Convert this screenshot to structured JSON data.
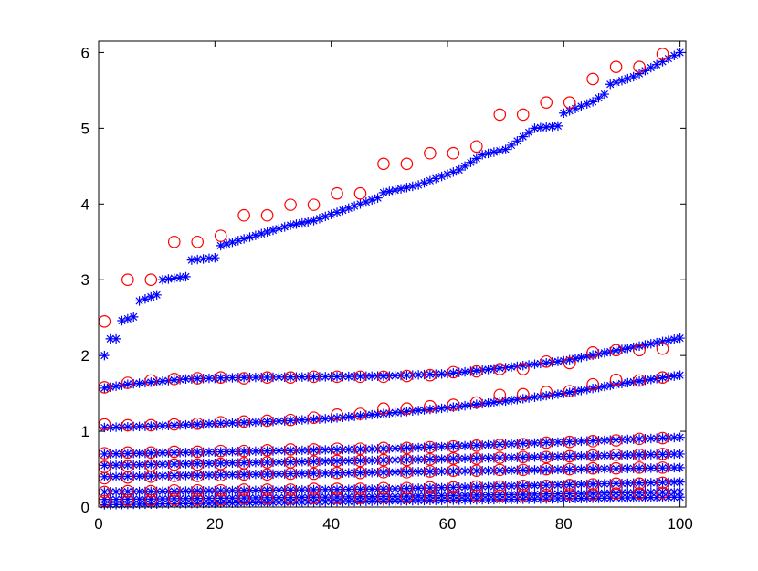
{
  "chart_data": {
    "type": "scatter",
    "title": "",
    "xlabel": "",
    "ylabel": "",
    "xlim": [
      0,
      101
    ],
    "ylim": [
      0,
      6.15
    ],
    "xticks": [
      0,
      20,
      40,
      60,
      80,
      100
    ],
    "yticks": [
      0,
      1,
      2,
      3,
      4,
      5,
      6
    ],
    "grid": false,
    "legend": null,
    "colors": {
      "star": "#0000ff",
      "circle": "#ff0000",
      "axes": "#000000"
    },
    "star_series": [
      {
        "knots": [
          [
            1,
            2.0
          ],
          [
            2,
            2.22
          ],
          [
            3,
            2.22
          ],
          [
            4,
            2.46
          ],
          [
            6,
            2.51
          ],
          [
            7,
            2.72
          ],
          [
            10,
            2.8
          ],
          [
            11,
            3.0
          ],
          [
            15,
            3.04
          ],
          [
            16,
            3.26
          ],
          [
            20,
            3.29
          ],
          [
            21,
            3.45
          ],
          [
            33,
            3.72
          ],
          [
            37,
            3.78
          ],
          [
            45,
            4.0
          ],
          [
            48,
            4.08
          ],
          [
            49,
            4.15
          ],
          [
            55,
            4.25
          ],
          [
            62,
            4.45
          ],
          [
            66,
            4.65
          ],
          [
            70,
            4.72
          ],
          [
            75,
            5.0
          ],
          [
            79,
            5.03
          ],
          [
            80,
            5.2
          ],
          [
            85,
            5.35
          ],
          [
            87,
            5.45
          ],
          [
            88,
            5.58
          ],
          [
            92,
            5.68
          ],
          [
            95,
            5.8
          ],
          [
            100,
            6.0
          ]
        ]
      },
      {
        "knots": [
          [
            1,
            1.57
          ],
          [
            5,
            1.62
          ],
          [
            15,
            1.69
          ],
          [
            25,
            1.71
          ],
          [
            40,
            1.72
          ],
          [
            50,
            1.73
          ],
          [
            60,
            1.76
          ],
          [
            70,
            1.84
          ],
          [
            80,
            1.93
          ],
          [
            90,
            2.08
          ],
          [
            100,
            2.23
          ]
        ]
      },
      {
        "knots": [
          [
            1,
            1.05
          ],
          [
            10,
            1.07
          ],
          [
            20,
            1.1
          ],
          [
            30,
            1.13
          ],
          [
            40,
            1.17
          ],
          [
            50,
            1.24
          ],
          [
            60,
            1.31
          ],
          [
            70,
            1.4
          ],
          [
            80,
            1.5
          ],
          [
            90,
            1.63
          ],
          [
            100,
            1.74
          ]
        ]
      },
      {
        "knots": [
          [
            1,
            0.7
          ],
          [
            50,
            0.77
          ],
          [
            100,
            0.92
          ]
        ]
      },
      {
        "knots": [
          [
            1,
            0.55
          ],
          [
            50,
            0.62
          ],
          [
            100,
            0.7
          ]
        ]
      },
      {
        "knots": [
          [
            1,
            0.4
          ],
          [
            50,
            0.46
          ],
          [
            100,
            0.52
          ]
        ]
      },
      {
        "knots": [
          [
            1,
            0.2
          ],
          [
            50,
            0.24
          ],
          [
            100,
            0.33
          ]
        ]
      },
      {
        "knots": [
          [
            1,
            0.1
          ],
          [
            50,
            0.14
          ],
          [
            100,
            0.2
          ]
        ]
      },
      {
        "knots": [
          [
            1,
            0.03
          ],
          [
            30,
            0.06
          ],
          [
            100,
            0.13
          ]
        ]
      }
    ],
    "circle_series": [
      {
        "points": [
          [
            1,
            2.45
          ],
          [
            5,
            3.0
          ],
          [
            9,
            3.0
          ],
          [
            13,
            3.5
          ],
          [
            17,
            3.5
          ],
          [
            21,
            3.58
          ],
          [
            25,
            3.85
          ],
          [
            29,
            3.85
          ],
          [
            33,
            3.99
          ],
          [
            37,
            3.99
          ],
          [
            41,
            4.14
          ],
          [
            45,
            4.14
          ],
          [
            49,
            4.53
          ],
          [
            53,
            4.53
          ],
          [
            57,
            4.67
          ],
          [
            61,
            4.67
          ],
          [
            65,
            4.76
          ],
          [
            69,
            5.18
          ],
          [
            73,
            5.18
          ],
          [
            77,
            5.34
          ],
          [
            81,
            5.34
          ],
          [
            85,
            5.65
          ],
          [
            89,
            5.81
          ],
          [
            93,
            5.81
          ],
          [
            97,
            5.98
          ]
        ]
      },
      {
        "points": [
          [
            1,
            1.58
          ],
          [
            5,
            1.64
          ],
          [
            9,
            1.67
          ],
          [
            13,
            1.69
          ],
          [
            17,
            1.7
          ],
          [
            21,
            1.71
          ],
          [
            25,
            1.7
          ],
          [
            29,
            1.71
          ],
          [
            33,
            1.71
          ],
          [
            37,
            1.72
          ],
          [
            41,
            1.72
          ],
          [
            45,
            1.72
          ],
          [
            49,
            1.72
          ],
          [
            53,
            1.73
          ],
          [
            57,
            1.74
          ],
          [
            61,
            1.78
          ],
          [
            65,
            1.79
          ],
          [
            69,
            1.82
          ],
          [
            73,
            1.82
          ],
          [
            77,
            1.92
          ],
          [
            81,
            1.9
          ],
          [
            85,
            2.04
          ],
          [
            89,
            2.07
          ],
          [
            93,
            2.07
          ],
          [
            97,
            2.09
          ]
        ]
      },
      {
        "points": [
          [
            1,
            1.09
          ],
          [
            5,
            1.08
          ],
          [
            9,
            1.08
          ],
          [
            13,
            1.09
          ],
          [
            17,
            1.1
          ],
          [
            21,
            1.12
          ],
          [
            25,
            1.13
          ],
          [
            29,
            1.14
          ],
          [
            33,
            1.15
          ],
          [
            37,
            1.18
          ],
          [
            41,
            1.22
          ],
          [
            45,
            1.23
          ],
          [
            49,
            1.3
          ],
          [
            53,
            1.3
          ],
          [
            57,
            1.33
          ],
          [
            61,
            1.35
          ],
          [
            65,
            1.38
          ],
          [
            69,
            1.48
          ],
          [
            73,
            1.49
          ],
          [
            77,
            1.52
          ],
          [
            81,
            1.53
          ],
          [
            85,
            1.62
          ],
          [
            89,
            1.68
          ],
          [
            93,
            1.67
          ],
          [
            97,
            1.71
          ]
        ]
      },
      {
        "points": [
          [
            1,
            0.71
          ],
          [
            5,
            0.72
          ],
          [
            9,
            0.72
          ],
          [
            13,
            0.73
          ],
          [
            17,
            0.73
          ],
          [
            21,
            0.74
          ],
          [
            25,
            0.74
          ],
          [
            29,
            0.75
          ],
          [
            33,
            0.76
          ],
          [
            37,
            0.76
          ],
          [
            41,
            0.77
          ],
          [
            45,
            0.77
          ],
          [
            49,
            0.78
          ],
          [
            53,
            0.78
          ],
          [
            57,
            0.79
          ],
          [
            61,
            0.8
          ],
          [
            65,
            0.81
          ],
          [
            69,
            0.82
          ],
          [
            73,
            0.83
          ],
          [
            77,
            0.85
          ],
          [
            81,
            0.86
          ],
          [
            85,
            0.87
          ],
          [
            89,
            0.88
          ],
          [
            93,
            0.9
          ],
          [
            97,
            0.91
          ]
        ]
      },
      {
        "points": [
          [
            1,
            0.53
          ],
          [
            5,
            0.54
          ],
          [
            9,
            0.55
          ],
          [
            13,
            0.56
          ],
          [
            17,
            0.56
          ],
          [
            21,
            0.57
          ],
          [
            25,
            0.58
          ],
          [
            29,
            0.59
          ],
          [
            33,
            0.59
          ],
          [
            37,
            0.6
          ],
          [
            41,
            0.61
          ],
          [
            45,
            0.61
          ],
          [
            49,
            0.62
          ],
          [
            53,
            0.62
          ],
          [
            57,
            0.63
          ],
          [
            61,
            0.64
          ],
          [
            65,
            0.64
          ],
          [
            69,
            0.65
          ],
          [
            73,
            0.66
          ],
          [
            77,
            0.66
          ],
          [
            81,
            0.67
          ],
          [
            85,
            0.68
          ],
          [
            89,
            0.69
          ],
          [
            93,
            0.69
          ],
          [
            97,
            0.7
          ]
        ]
      },
      {
        "points": [
          [
            1,
            0.38
          ],
          [
            5,
            0.39
          ],
          [
            9,
            0.4
          ],
          [
            13,
            0.41
          ],
          [
            17,
            0.41
          ],
          [
            21,
            0.42
          ],
          [
            25,
            0.43
          ],
          [
            29,
            0.43
          ],
          [
            33,
            0.44
          ],
          [
            37,
            0.44
          ],
          [
            41,
            0.45
          ],
          [
            45,
            0.45
          ],
          [
            49,
            0.46
          ],
          [
            53,
            0.46
          ],
          [
            57,
            0.47
          ],
          [
            61,
            0.48
          ],
          [
            65,
            0.48
          ],
          [
            69,
            0.49
          ],
          [
            73,
            0.49
          ],
          [
            77,
            0.5
          ],
          [
            81,
            0.5
          ],
          [
            85,
            0.51
          ],
          [
            89,
            0.51
          ],
          [
            93,
            0.52
          ],
          [
            97,
            0.52
          ]
        ]
      },
      {
        "points": [
          [
            1,
            0.2
          ],
          [
            5,
            0.21
          ],
          [
            9,
            0.21
          ],
          [
            13,
            0.22
          ],
          [
            17,
            0.22
          ],
          [
            21,
            0.22
          ],
          [
            25,
            0.23
          ],
          [
            29,
            0.23
          ],
          [
            33,
            0.23
          ],
          [
            37,
            0.24
          ],
          [
            41,
            0.24
          ],
          [
            45,
            0.24
          ],
          [
            49,
            0.25
          ],
          [
            53,
            0.25
          ],
          [
            57,
            0.26
          ],
          [
            61,
            0.26
          ],
          [
            65,
            0.27
          ],
          [
            69,
            0.27
          ],
          [
            73,
            0.28
          ],
          [
            77,
            0.28
          ],
          [
            81,
            0.29
          ],
          [
            85,
            0.3
          ],
          [
            89,
            0.31
          ],
          [
            93,
            0.31
          ],
          [
            97,
            0.32
          ]
        ]
      },
      {
        "points": [
          [
            1,
            0.08
          ],
          [
            5,
            0.09
          ],
          [
            9,
            0.09
          ],
          [
            13,
            0.1
          ],
          [
            17,
            0.1
          ],
          [
            21,
            0.1
          ],
          [
            25,
            0.11
          ],
          [
            29,
            0.11
          ],
          [
            33,
            0.11
          ],
          [
            37,
            0.12
          ],
          [
            41,
            0.12
          ],
          [
            45,
            0.12
          ],
          [
            49,
            0.13
          ],
          [
            53,
            0.13
          ],
          [
            57,
            0.14
          ],
          [
            61,
            0.14
          ],
          [
            65,
            0.15
          ],
          [
            69,
            0.15
          ],
          [
            73,
            0.16
          ],
          [
            77,
            0.16
          ],
          [
            81,
            0.17
          ],
          [
            85,
            0.17
          ],
          [
            89,
            0.18
          ],
          [
            93,
            0.18
          ],
          [
            97,
            0.19
          ]
        ]
      }
    ]
  }
}
